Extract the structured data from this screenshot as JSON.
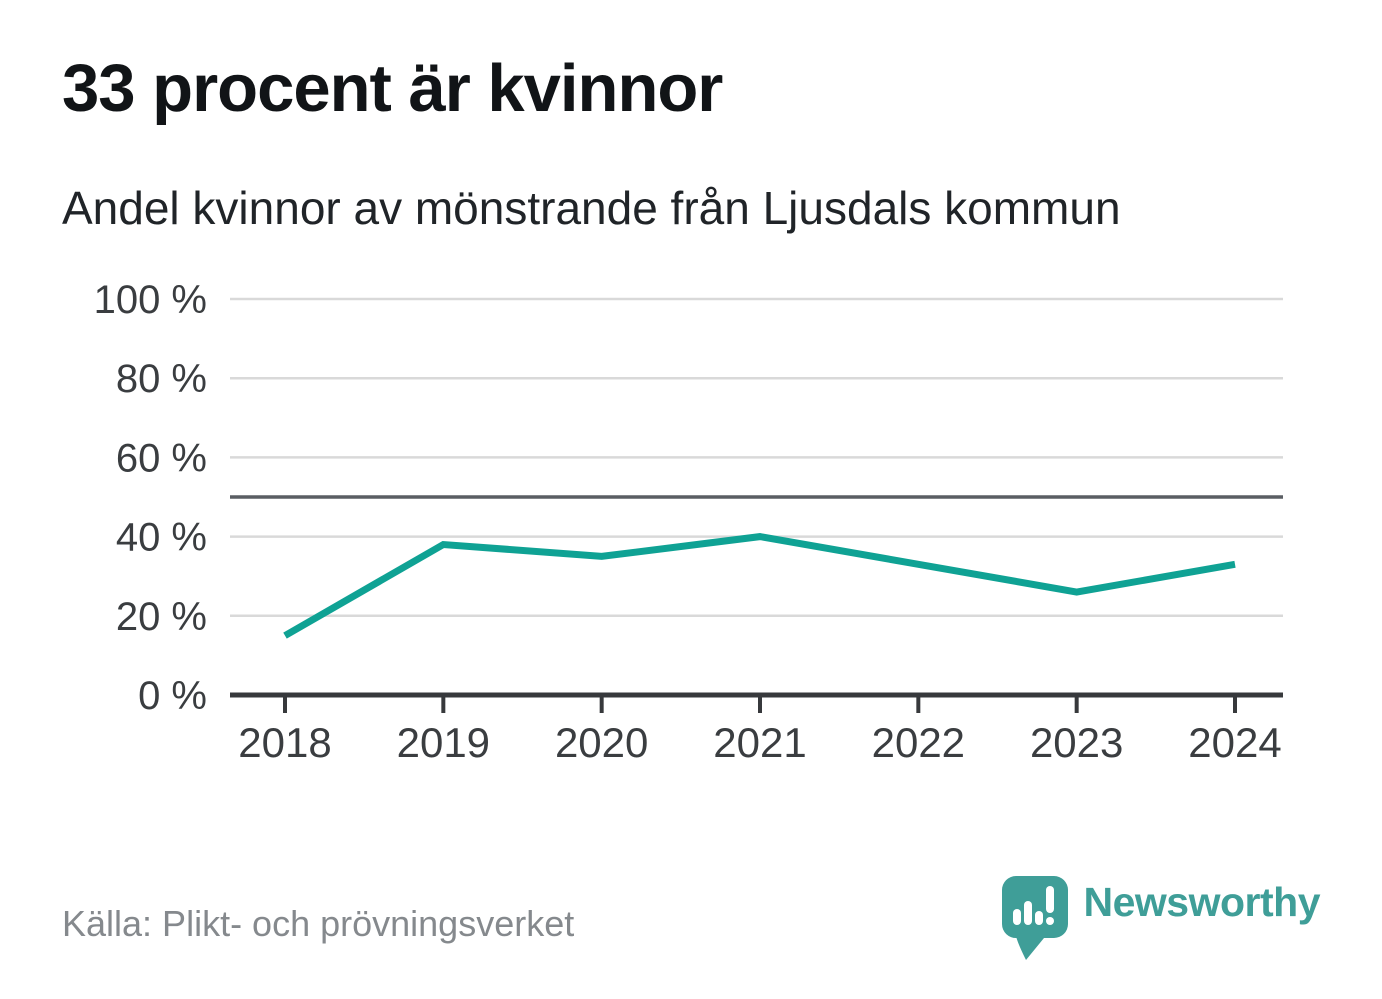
{
  "header": {
    "title": "33 procent är kvinnor",
    "subtitle": "Andel kvinnor av mönstrande från Ljusdals kommun"
  },
  "footer": {
    "source": "Källa: Plikt- och prövningsverket",
    "brand": "Newsworthy"
  },
  "colors": {
    "line": "#0fa294",
    "brand": "#3f9e98",
    "grid": "#d9d9d9",
    "reference_line": "#5a5e63",
    "axis": "#37393c",
    "tick_label": "#3a3d40",
    "title_text": "#111417",
    "subtitle_text": "#202428",
    "source_text": "#85898d"
  },
  "chart_data": {
    "type": "line",
    "title": "33 procent är kvinnor",
    "subtitle": "Andel kvinnor av mönstrande från Ljusdals kommun",
    "categories": [
      2018,
      2019,
      2020,
      2021,
      2022,
      2023,
      2024
    ],
    "x_tick_labels": [
      "2018",
      "2019",
      "2020",
      "2021",
      "2022",
      "2023",
      "2024"
    ],
    "series": [
      {
        "name": "Andel kvinnor av mönstrande",
        "values": [
          15,
          38,
          35,
          40,
          33,
          26,
          33
        ]
      }
    ],
    "unit": "%",
    "ylim": [
      0,
      100
    ],
    "y_ticks": [
      {
        "value": 100,
        "label": "100 %"
      },
      {
        "value": 80,
        "label": "80 %"
      },
      {
        "value": 60,
        "label": "60 %"
      },
      {
        "value": 40,
        "label": "40 %"
      },
      {
        "value": 20,
        "label": "20 %"
      },
      {
        "value": 0,
        "label": "0 %"
      }
    ],
    "reference_line": {
      "value": 50
    },
    "grid": "horizontal",
    "legend": "none",
    "source": "Källa: Plikt- och prövningsverket"
  }
}
